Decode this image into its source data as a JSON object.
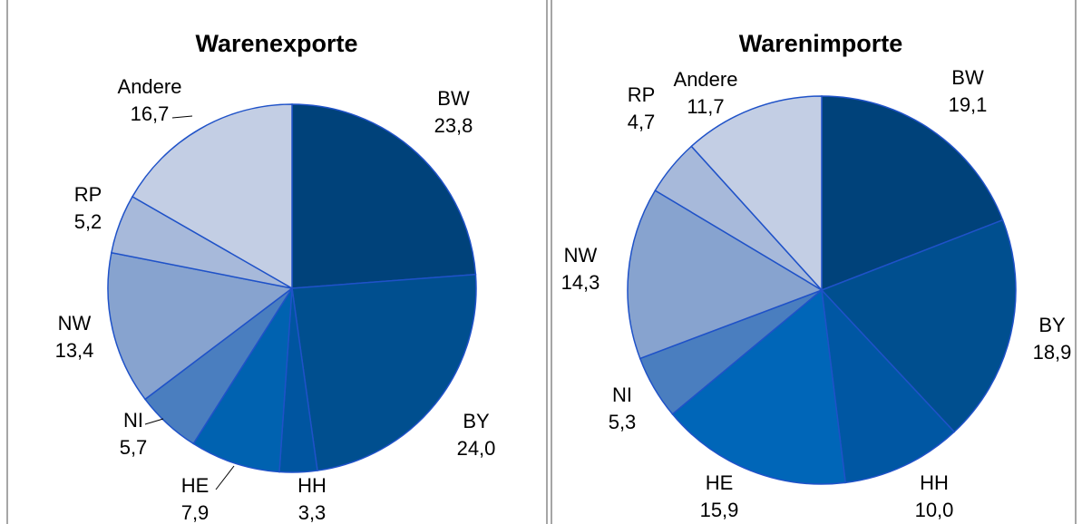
{
  "chart_data": [
    {
      "type": "pie",
      "title": "Warenexporte",
      "categories": [
        "BW",
        "BY",
        "HH",
        "HE",
        "NI",
        "NW",
        "RP",
        "Andere"
      ],
      "values": [
        23.8,
        24.0,
        3.3,
        7.9,
        5.7,
        13.4,
        5.2,
        16.7
      ],
      "value_labels": [
        "23,8",
        "24,0",
        "3,3",
        "7,9",
        "5,7",
        "13,4",
        "5,2",
        "16,7"
      ],
      "colors": [
        "#00427a",
        "#004f8f",
        "#0055a0",
        "#0062b0",
        "#4a7ebf",
        "#87a3cf",
        "#a7b9da",
        "#c3cee4"
      ]
    },
    {
      "type": "pie",
      "title": "Warenimporte",
      "categories": [
        "BW",
        "BY",
        "HH",
        "HE",
        "NI",
        "NW",
        "RP",
        "Andere"
      ],
      "values": [
        19.1,
        18.9,
        10.0,
        15.9,
        5.3,
        14.3,
        4.7,
        11.7
      ],
      "value_labels": [
        "19,1",
        "18,9",
        "10,0",
        "15,9",
        "5,3",
        "14,3",
        "4,7",
        "11,7"
      ],
      "colors": [
        "#00427a",
        "#004f8f",
        "#0057a3",
        "#0066b8",
        "#4a7ebf",
        "#87a3cf",
        "#a7b9da",
        "#c3cee4"
      ]
    }
  ]
}
